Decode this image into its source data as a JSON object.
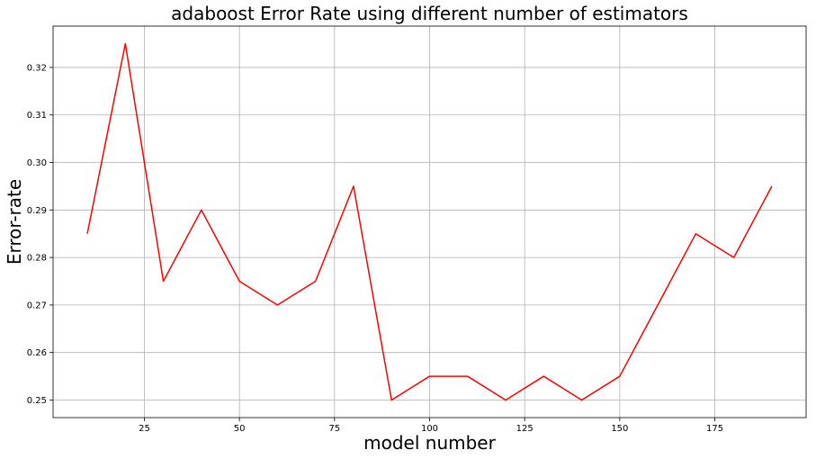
{
  "chart_data": {
    "type": "line",
    "title": "adaboost Error Rate using different number of estimators",
    "xlabel": "model number",
    "ylabel": "Error-rate",
    "xlim": [
      1,
      199
    ],
    "ylim": [
      0.2463,
      0.3287
    ],
    "grid": true,
    "x_ticks": [
      {
        "value": 25,
        "label": "25"
      },
      {
        "value": 50,
        "label": "50"
      },
      {
        "value": 75,
        "label": "75"
      },
      {
        "value": 100,
        "label": "100"
      },
      {
        "value": 125,
        "label": "125"
      },
      {
        "value": 150,
        "label": "150"
      },
      {
        "value": 175,
        "label": "175"
      }
    ],
    "y_ticks": [
      {
        "value": 0.25,
        "label": "0.25"
      },
      {
        "value": 0.26,
        "label": "0.26"
      },
      {
        "value": 0.27,
        "label": "0.27"
      },
      {
        "value": 0.28,
        "label": "0.28"
      },
      {
        "value": 0.29,
        "label": "0.29"
      },
      {
        "value": 0.3,
        "label": "0.30"
      },
      {
        "value": 0.31,
        "label": "0.31"
      },
      {
        "value": 0.32,
        "label": "0.32"
      }
    ],
    "series": [
      {
        "color": "#ff0000",
        "x": [
          10,
          20,
          30,
          40,
          50,
          60,
          70,
          80,
          90,
          100,
          110,
          120,
          130,
          140,
          150,
          160,
          170,
          180,
          190
        ],
        "values": [
          0.285,
          0.325,
          0.275,
          0.29,
          0.275,
          0.27,
          0.275,
          0.295,
          0.25,
          0.255,
          0.255,
          0.25,
          0.255,
          0.25,
          0.255,
          0.27,
          0.285,
          0.28,
          0.295
        ]
      }
    ]
  }
}
